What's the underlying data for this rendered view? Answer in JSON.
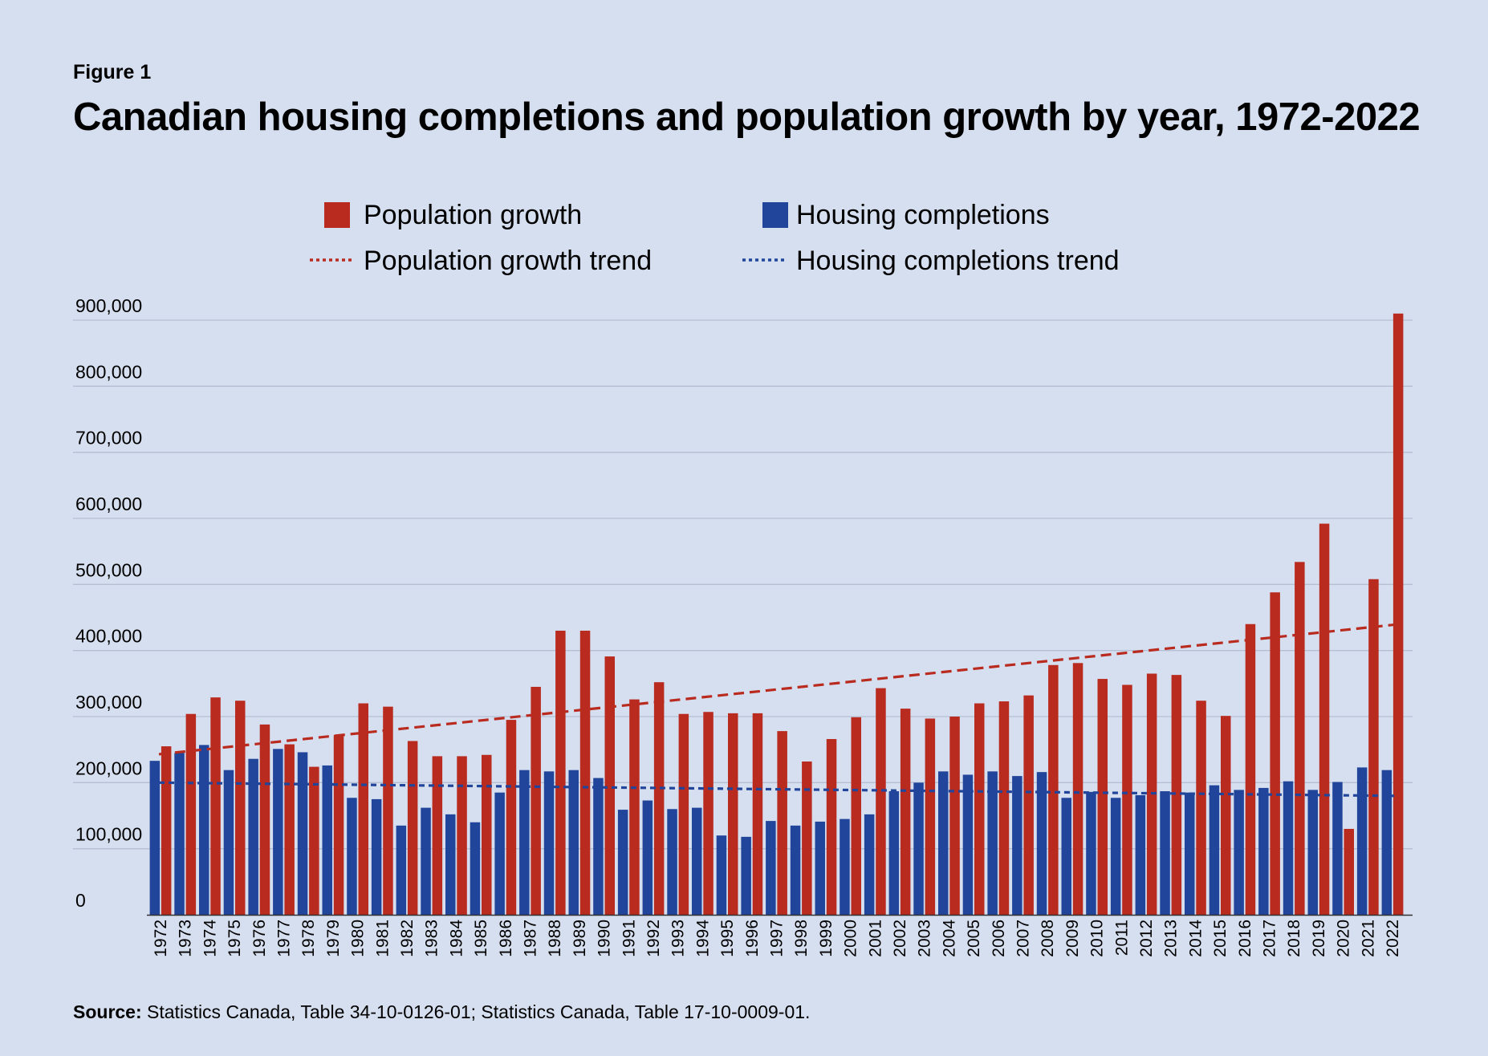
{
  "figure_label": "Figure 1",
  "title": "Canadian housing completions and population growth by year, 1972-2022",
  "source": {
    "label": "Source:",
    "text": " Statistics Canada, Table 34-10-0126-01; Statistics Canada, Table 17-10-0009-01."
  },
  "colors": {
    "background": "#d6dfef",
    "population": "#b92a1f",
    "housing": "#21459a",
    "grid": "#b4bfd4",
    "axis": "#333333"
  },
  "chart_data": {
    "type": "bar",
    "title": "",
    "xlabel": "",
    "ylabel": "",
    "ylim": [
      0,
      900000
    ],
    "yticks": [
      0,
      100000,
      200000,
      300000,
      400000,
      500000,
      600000,
      700000,
      800000,
      900000
    ],
    "ytick_labels": [
      "0",
      "100,000",
      "200,000",
      "300,000",
      "400,000",
      "500,000",
      "600,000",
      "700,000",
      "800,000",
      "900,000"
    ],
    "grid": true,
    "legend_position": "top-center",
    "legend": [
      {
        "label": "Population growth",
        "kind": "bar",
        "series": "population"
      },
      {
        "label": "Housing completions",
        "kind": "bar",
        "series": "housing"
      },
      {
        "label": "Population growth trend",
        "kind": "dotted-line",
        "series": "population"
      },
      {
        "label": "Housing completions trend",
        "kind": "dotted-line",
        "series": "housing"
      }
    ],
    "categories": [
      "1972",
      "1973",
      "1974",
      "1975",
      "1976",
      "1977",
      "1978",
      "1979",
      "1980",
      "1981",
      "1982",
      "1983",
      "1984",
      "1985",
      "1986",
      "1987",
      "1988",
      "1989",
      "1990",
      "1991",
      "1992",
      "1993",
      "1994",
      "1995",
      "1996",
      "1997",
      "1998",
      "1999",
      "2000",
      "2001",
      "2002",
      "2003",
      "2004",
      "2005",
      "2006",
      "2007",
      "2008",
      "2009",
      "2010",
      "2011",
      "2012",
      "2013",
      "2014",
      "2015",
      "2016",
      "2017",
      "2018",
      "2019",
      "2020",
      "2021",
      "2022"
    ],
    "series": [
      {
        "name": "Housing completions",
        "key": "housing",
        "values": [
          233000,
          245000,
          257000,
          219000,
          236000,
          251000,
          246000,
          226000,
          177000,
          175000,
          135000,
          162000,
          152000,
          140000,
          185000,
          219000,
          217000,
          219000,
          207000,
          159000,
          173000,
          160000,
          162000,
          120000,
          118000,
          142000,
          135000,
          141000,
          145000,
          152000,
          187000,
          200000,
          217000,
          212000,
          217000,
          210000,
          216000,
          177000,
          186000,
          177000,
          181000,
          187000,
          185000,
          196000,
          189000,
          192000,
          202000,
          189000,
          201000,
          223000,
          219000
        ]
      },
      {
        "name": "Population growth",
        "key": "population",
        "values": [
          255000,
          304000,
          329000,
          324000,
          288000,
          258000,
          224000,
          272000,
          320000,
          315000,
          263000,
          240000,
          240000,
          242000,
          295000,
          345000,
          430000,
          430000,
          391000,
          326000,
          352000,
          304000,
          307000,
          305000,
          305000,
          278000,
          232000,
          266000,
          299000,
          343000,
          312000,
          297000,
          300000,
          320000,
          323000,
          332000,
          378000,
          381000,
          357000,
          348000,
          365000,
          363000,
          324000,
          301000,
          440000,
          488000,
          534000,
          592000,
          130000,
          508000,
          910000
        ]
      }
    ],
    "trends": [
      {
        "name": "Population growth trend",
        "key": "population",
        "start": 243000,
        "end": 439000
      },
      {
        "name": "Housing completions trend",
        "key": "housing",
        "start": 200000,
        "end": 180000
      }
    ]
  }
}
